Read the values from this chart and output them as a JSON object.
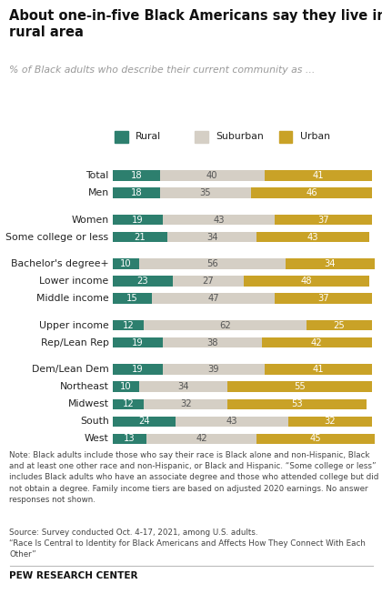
{
  "title": "About one-in-five Black Americans say they live in a\nrural area",
  "subtitle": "% of Black adults who describe their current community as ...",
  "categories": [
    "Total",
    "Men",
    "Women",
    "Some college or less",
    "Bachelor's degree+",
    "Lower income",
    "Middle income",
    "Upper income",
    "Rep/Lean Rep",
    "Dem/Lean Dem",
    "Northeast",
    "Midwest",
    "South",
    "West"
  ],
  "rural": [
    18,
    18,
    19,
    21,
    10,
    23,
    15,
    12,
    19,
    19,
    10,
    12,
    24,
    13
  ],
  "suburban": [
    40,
    35,
    43,
    34,
    56,
    27,
    47,
    62,
    38,
    39,
    34,
    32,
    43,
    42
  ],
  "urban": [
    41,
    46,
    37,
    43,
    34,
    48,
    37,
    25,
    42,
    41,
    55,
    53,
    32,
    45
  ],
  "rural_color": "#2d7f6e",
  "suburban_color": "#d5cfc5",
  "urban_color": "#c9a227",
  "note": "Note: Black adults include those who say their race is Black alone and non-Hispanic, Black\nand at least one other race and non-Hispanic, or Black and Hispanic. “Some college or less”\nincludes Black adults who have an associate degree and those who attended college but did\nnot obtain a degree. Family income tiers are based on adjusted 2020 earnings. No answer\nresponses not shown.",
  "source": "Source: Survey conducted Oct. 4-17, 2021, among U.S. adults.\n“Race Is Central to Identity for Black Americans and Affects How They Connect With Each\nOther”",
  "pew": "PEW RESEARCH CENTER",
  "bg_color": "#ffffff",
  "text_color": "#222222",
  "bar_height": 0.6
}
